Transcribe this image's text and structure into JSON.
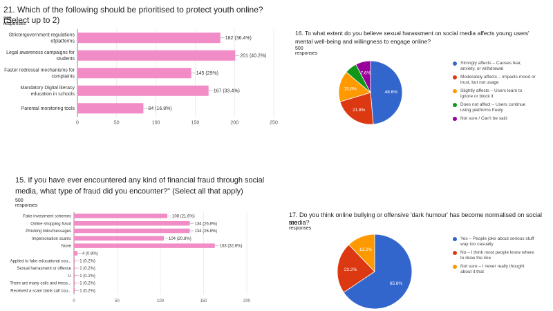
{
  "chart_data": [
    {
      "id": "q21",
      "type": "bar",
      "orientation": "horizontal",
      "title": "21. Which of the following should be prioritised to protect youth online? (Select up to 2)",
      "responses": "500 responses",
      "categories": [
        "Strictergovernment regulations|ofplatforms",
        "Legal awareness campaigns for|students",
        "Faster redressal mechanisms for|complaints",
        "Mandatory Digital literacy|education in schools",
        "Parental monitoring tools"
      ],
      "values": [
        182,
        201,
        145,
        167,
        84
      ],
      "labels": [
        "182 (36.4%)",
        "201 (40.2%)",
        "145 (29%)",
        "167 (33.4%)",
        "84 (16.8%)"
      ],
      "xlim": [
        0,
        250
      ],
      "ticks": [
        0,
        50,
        100,
        150,
        200,
        250
      ],
      "color": "#f28cc6"
    },
    {
      "id": "q16",
      "type": "pie",
      "title": "16. To what extent do you believe sexual harassment on social media affects young users' mental well-being and willingness to engage online?",
      "responses": "500 responses",
      "slices": [
        {
          "label": "Strongly affects – Causes fear, anxiety, or withdrawal",
          "value": 48.6,
          "text": "48.6%",
          "color": "#3366cc"
        },
        {
          "label": "Moderately affects – Impacts mood or trust, but not usage",
          "value": 21.8,
          "text": "21.8%",
          "color": "#dc3912"
        },
        {
          "label": "Slightly affects – Users learn to ignore or block it",
          "value": 15.8,
          "text": "15.8%",
          "color": "#ff9900"
        },
        {
          "label": "Does not affect – Users continue using platforms freely",
          "value": 6.2,
          "text": "",
          "color": "#109618"
        },
        {
          "label": "Not sure / Can't be said",
          "value": 7.6,
          "text": "7.6%",
          "color": "#990099"
        }
      ]
    },
    {
      "id": "q15",
      "type": "bar",
      "orientation": "horizontal",
      "title": "15. If you have ever encountered any kind of financial fraud through social media, what type of fraud did you encounter?\" (Select all that apply)",
      "responses": "500 responses",
      "categories": [
        "Fake investment schemes",
        "Online shopping fraud",
        "Phishing links/messages",
        "Impersonation scams",
        "None",
        "",
        "Applied to fake educational cou...",
        "Sexual harrasment or offence",
        "U",
        "There are many calls and mess...",
        "Received a scam bank call cou..."
      ],
      "values": [
        108,
        134,
        134,
        104,
        163,
        4,
        1,
        1,
        1,
        1,
        1
      ],
      "labels": [
        "108 (21.6%)",
        "134 (26.8%)",
        "134 (26.8%)",
        "104 (20.8%)",
        "163 (32.6%)",
        "4 (0.8%)",
        "1 (0.2%)",
        "1 (0.2%)",
        "1 (0.2%)",
        "1 (0.2%)",
        "1 (0.2%)"
      ],
      "xlim": [
        0,
        200
      ],
      "ticks": [
        0,
        50,
        100,
        150,
        200
      ],
      "color": "#f28cc6"
    },
    {
      "id": "q17",
      "type": "pie",
      "title": "17. Do you think online bullying or offensive 'dark humour' has become normalised on social media?",
      "responses": "500 responses",
      "slices": [
        {
          "label": "Yes – People joke about serious stuff way too casually",
          "value": 65.6,
          "text": "65.6%",
          "color": "#3366cc"
        },
        {
          "label": "No – I think most people know where to draw the line",
          "value": 22.2,
          "text": "22.2%",
          "color": "#dc3912"
        },
        {
          "label": "Not sure – I never really thought about it that",
          "value": 12.2,
          "text": "12.2%",
          "color": "#ff9900"
        }
      ]
    }
  ]
}
